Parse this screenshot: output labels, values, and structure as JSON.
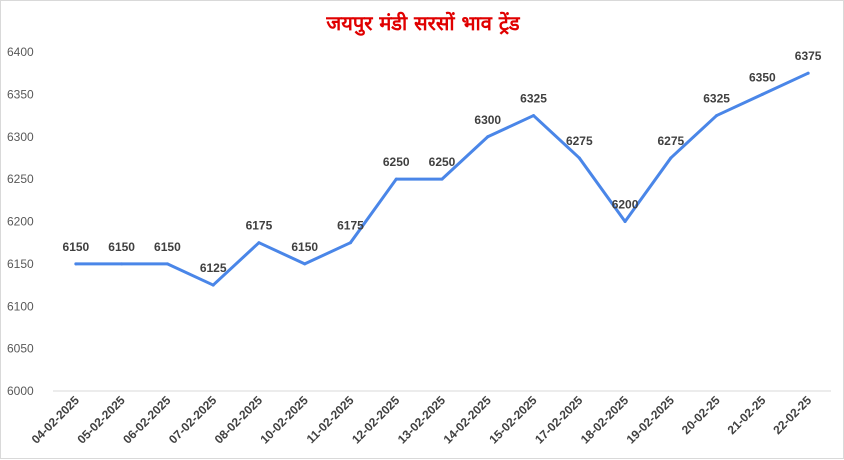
{
  "chart_data": {
    "type": "line",
    "title": "जयपुर मंडी सरसों भाव ट्रेंड",
    "xlabel": "",
    "ylabel": "",
    "ylim": [
      6000,
      6400
    ],
    "yticks": [
      6000,
      6050,
      6100,
      6150,
      6200,
      6250,
      6300,
      6350,
      6400
    ],
    "grid": false,
    "legend": "none",
    "line_color": "#4a86e8",
    "title_color": "#e00000",
    "categories": [
      "04-02-2025",
      "05-02-2025",
      "06-02-2025",
      "07-02-2025",
      "08-02-2025",
      "10-02-2025",
      "11-02-2025",
      "12-02-2025",
      "13-02-2025",
      "14-02-2025",
      "15-02-2025",
      "17-02-2025",
      "18-02-2025",
      "19-02-2025",
      "20-02-25",
      "21-02-25",
      "22-02-25"
    ],
    "series": [
      {
        "values": [
          6150,
          6150,
          6150,
          6125,
          6175,
          6150,
          6175,
          6250,
          6250,
          6300,
          6325,
          6275,
          6200,
          6275,
          6325,
          6350,
          6375
        ]
      }
    ]
  }
}
